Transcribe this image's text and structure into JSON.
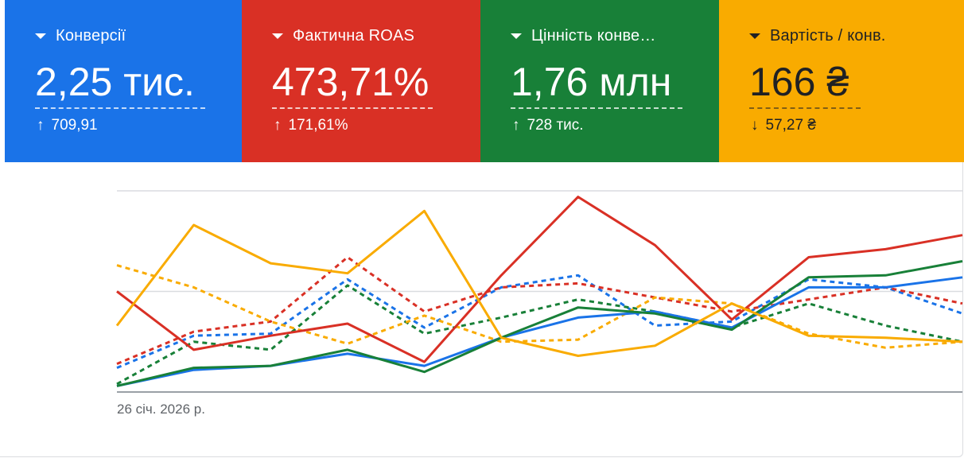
{
  "colors": {
    "conversions": "#1a73e8",
    "roas": "#d93025",
    "conv_value": "#188038",
    "cost_per_conv": "#f9ab00",
    "axis": "#9aa0a6",
    "gridline": "#dadce0"
  },
  "cards": [
    {
      "label": "Конверсії",
      "value": "2,25 тис.",
      "delta_arrow": "↑",
      "delta": "709,91",
      "color": "#1a73e8",
      "icon": "dropdown-caret-icon"
    },
    {
      "label": "Фактична ROAS",
      "value": "473,71%",
      "delta_arrow": "↑",
      "delta": "171,61%",
      "color": "#d93025",
      "icon": "dropdown-caret-icon"
    },
    {
      "label": "Цінність конве…",
      "value": "1,76 млн",
      "delta_arrow": "↑",
      "delta": "728 тис.",
      "color": "#188038",
      "icon": "dropdown-caret-icon"
    },
    {
      "label": "Вартість / конв.",
      "value": "166 ₴",
      "delta_arrow": "↓",
      "delta": "57,27 ₴",
      "color": "#f9ab00",
      "icon": "dropdown-caret-icon"
    }
  ],
  "chart": {
    "x_start_label": "26 січ. 2026 р."
  },
  "chart_data": {
    "type": "line",
    "x": [
      1,
      2,
      3,
      4,
      5,
      6,
      7,
      8,
      9,
      10,
      11,
      12
    ],
    "ylim": [
      0,
      100
    ],
    "grid": true,
    "series": [
      {
        "key": "conversions",
        "style": "solid",
        "values": [
          3,
          11,
          13,
          19,
          13,
          27,
          37,
          40,
          32,
          52,
          52,
          57
        ]
      },
      {
        "key": "roas",
        "style": "solid",
        "values": [
          50,
          21,
          28,
          34,
          15,
          58,
          97,
          73,
          36,
          67,
          71,
          78
        ]
      },
      {
        "key": "conv_value",
        "style": "solid",
        "values": [
          3,
          12,
          13,
          21,
          10,
          27,
          42,
          39,
          31,
          57,
          58,
          65
        ]
      },
      {
        "key": "cost_per_conv",
        "style": "solid",
        "values": [
          33,
          83,
          64,
          59,
          90,
          27,
          18,
          23,
          44,
          28,
          27,
          25
        ]
      },
      {
        "key": "conversions",
        "style": "dashed",
        "values": [
          12,
          28,
          29,
          56,
          32,
          52,
          58,
          33,
          35,
          56,
          52,
          39
        ]
      },
      {
        "key": "roas",
        "style": "dashed",
        "values": [
          14,
          30,
          35,
          67,
          40,
          52,
          54,
          47,
          40,
          46,
          52,
          44
        ]
      },
      {
        "key": "conv_value",
        "style": "dashed",
        "values": [
          4,
          25,
          21,
          53,
          29,
          37,
          46,
          40,
          32,
          44,
          33,
          25
        ]
      },
      {
        "key": "cost_per_conv",
        "style": "dashed",
        "values": [
          63,
          52,
          35,
          24,
          38,
          25,
          26,
          47,
          44,
          29,
          22,
          25
        ]
      }
    ]
  }
}
